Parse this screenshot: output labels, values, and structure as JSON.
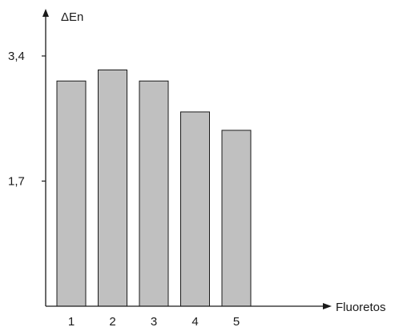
{
  "chart_data": {
    "type": "bar",
    "categories": [
      "1",
      "2",
      "3",
      "4",
      "5"
    ],
    "values": [
      3.06,
      3.21,
      3.06,
      2.64,
      2.39
    ],
    "xlabel": "Fluoretos",
    "ylabel": "ΔEn",
    "yticks": [
      {
        "value": 1.7,
        "label": "1,7"
      },
      {
        "value": 3.4,
        "label": "3,4"
      }
    ],
    "ylim": [
      0,
      3.4
    ],
    "grid": false,
    "bar_fill": "#c0c0c0",
    "bar_stroke": "#1a1a1a",
    "axis_color": "#1a1a1a"
  }
}
